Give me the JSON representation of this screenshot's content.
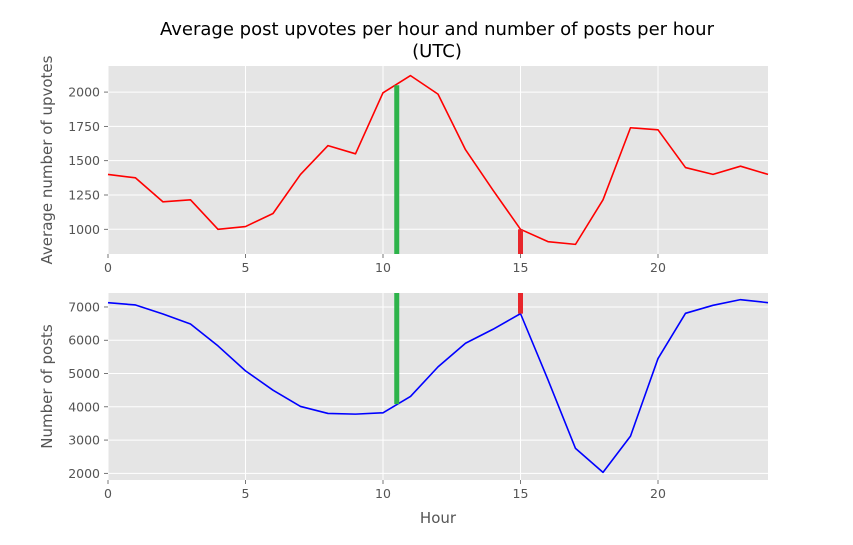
{
  "chart_data": [
    {
      "type": "line",
      "title": "Average post upvotes per hour and number of posts per hour\n(UTC)",
      "xlabel": "",
      "ylabel": "Average number of upvotes",
      "xlim": [
        0,
        24
      ],
      "ylim": [
        820,
        2190
      ],
      "xticks": [
        0,
        5,
        10,
        15,
        20
      ],
      "yticks": [
        1000,
        1250,
        1500,
        1750,
        2000
      ],
      "grid": true,
      "series": [
        {
          "color": "#ff0000",
          "x": [
            0,
            1,
            2,
            3,
            4,
            5,
            6,
            7,
            8,
            9,
            10,
            11,
            12,
            13,
            14,
            15,
            16,
            17,
            18,
            19,
            20,
            21,
            22,
            23,
            24
          ],
          "y": [
            1400,
            1375,
            1200,
            1215,
            1000,
            1020,
            1115,
            1400,
            1610,
            1550,
            1995,
            2120,
            1985,
            1580,
            1285,
            1000,
            910,
            890,
            1215,
            1740,
            1725,
            1450,
            1400,
            1460,
            1400
          ]
        }
      ],
      "markers": [
        {
          "x": 10.5,
          "y_from": 820,
          "y_to": 2050,
          "color": "#2db34a"
        },
        {
          "x": 15,
          "y_from": 820,
          "y_to": 1000,
          "color": "#e8262b"
        }
      ]
    },
    {
      "type": "line",
      "title": "",
      "xlabel": "Hour",
      "ylabel": "Number of posts",
      "xlim": [
        0,
        24
      ],
      "ylim": [
        1800,
        7420
      ],
      "xticks": [
        0,
        5,
        10,
        15,
        20
      ],
      "yticks": [
        2000,
        3000,
        4000,
        5000,
        6000,
        7000
      ],
      "grid": true,
      "series": [
        {
          "color": "#0000ff",
          "x": [
            0,
            1,
            2,
            3,
            4,
            5,
            6,
            7,
            8,
            9,
            10,
            11,
            12,
            13,
            14,
            15,
            16,
            17,
            18,
            19,
            20,
            21,
            22,
            23,
            24
          ],
          "y": [
            7130,
            7060,
            6790,
            6490,
            5830,
            5080,
            4500,
            4010,
            3800,
            3780,
            3820,
            4310,
            5200,
            5910,
            6330,
            6800,
            4810,
            2750,
            2030,
            3120,
            5450,
            6810,
            7050,
            7220,
            7130
          ]
        }
      ],
      "markers": [
        {
          "x": 10.5,
          "y_from": 4080,
          "y_to": 7420,
          "color": "#2db34a"
        },
        {
          "x": 15,
          "y_from": 6800,
          "y_to": 7420,
          "color": "#e8262b"
        }
      ]
    }
  ]
}
